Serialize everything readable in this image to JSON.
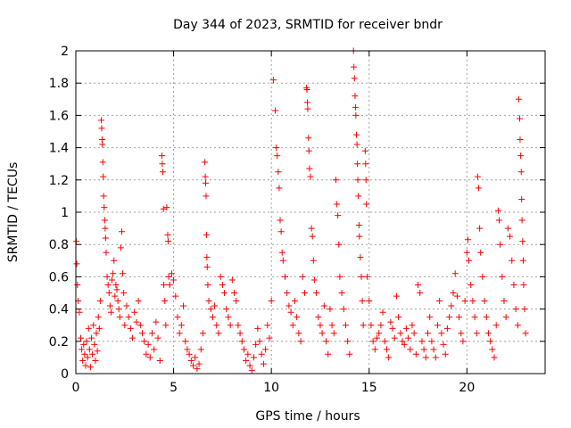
{
  "chart_data": {
    "type": "scatter",
    "title": "Day 344 of 2023, SRMTID for receiver bndr",
    "xlabel": "GPS time / hours",
    "ylabel": "SRMTID / TECUs",
    "xlim": [
      0,
      24
    ],
    "ylim": [
      0,
      2
    ],
    "xticks": [
      0,
      5,
      10,
      15,
      20
    ],
    "yticks": [
      0,
      0.2,
      0.4,
      0.6,
      0.8,
      1,
      1.2,
      1.4,
      1.6,
      1.8,
      2
    ],
    "xtick_labels": [
      "0",
      "5",
      "10",
      "15",
      "20"
    ],
    "ytick_labels": [
      "0",
      "0.2",
      "0.4",
      "0.6",
      "0.8",
      "1",
      "1.2",
      "1.4",
      "1.6",
      "1.8",
      "2"
    ],
    "grid": true,
    "marker": "+",
    "marker_color": "#ff0000",
    "series": [
      {
        "name": "SRMTID",
        "points": [
          [
            0.02,
            0.82
          ],
          [
            0.05,
            0.68
          ],
          [
            0.08,
            0.55
          ],
          [
            0.12,
            0.45
          ],
          [
            0.18,
            0.38
          ],
          [
            0.25,
            0.22
          ],
          [
            0.3,
            0.15
          ],
          [
            0.35,
            0.08
          ],
          [
            0.4,
            0.18
          ],
          [
            0.45,
            0.12
          ],
          [
            0.5,
            0.05
          ],
          [
            0.55,
            0.2
          ],
          [
            0.6,
            0.1
          ],
          [
            0.65,
            0.28
          ],
          [
            0.7,
            0.15
          ],
          [
            0.75,
            0.04
          ],
          [
            0.8,
            0.22
          ],
          [
            0.85,
            0.12
          ],
          [
            0.9,
            0.3
          ],
          [
            0.95,
            0.18
          ],
          [
            1.0,
            0.08
          ],
          [
            1.05,
            0.25
          ],
          [
            1.1,
            0.14
          ],
          [
            1.15,
            0.35
          ],
          [
            1.2,
            0.28
          ],
          [
            1.25,
            0.45
          ],
          [
            1.3,
            1.57
          ],
          [
            1.32,
            1.52
          ],
          [
            1.34,
            1.45
          ],
          [
            1.36,
            1.42
          ],
          [
            1.38,
            1.31
          ],
          [
            1.4,
            1.22
          ],
          [
            1.42,
            1.1
          ],
          [
            1.45,
            1.03
          ],
          [
            1.48,
            0.95
          ],
          [
            1.5,
            0.9
          ],
          [
            1.52,
            0.84
          ],
          [
            1.55,
            0.75
          ],
          [
            1.6,
            0.6
          ],
          [
            1.65,
            0.55
          ],
          [
            1.7,
            0.5
          ],
          [
            1.75,
            0.42
          ],
          [
            1.8,
            0.38
          ],
          [
            1.85,
            0.58
          ],
          [
            1.9,
            0.62
          ],
          [
            1.95,
            0.7
          ],
          [
            2.0,
            0.48
          ],
          [
            2.05,
            0.55
          ],
          [
            2.1,
            0.52
          ],
          [
            2.15,
            0.45
          ],
          [
            2.2,
            0.4
          ],
          [
            2.25,
            0.35
          ],
          [
            2.3,
            0.78
          ],
          [
            2.35,
            0.88
          ],
          [
            2.4,
            0.62
          ],
          [
            2.45,
            0.5
          ],
          [
            2.5,
            0.3
          ],
          [
            2.6,
            0.42
          ],
          [
            2.7,
            0.35
          ],
          [
            2.8,
            0.28
          ],
          [
            2.9,
            0.22
          ],
          [
            3.0,
            0.38
          ],
          [
            3.1,
            0.32
          ],
          [
            3.2,
            0.45
          ],
          [
            3.3,
            0.3
          ],
          [
            3.4,
            0.25
          ],
          [
            3.5,
            0.2
          ],
          [
            3.6,
            0.12
          ],
          [
            3.7,
            0.18
          ],
          [
            3.8,
            0.1
          ],
          [
            3.9,
            0.25
          ],
          [
            4.0,
            0.15
          ],
          [
            4.1,
            0.32
          ],
          [
            4.2,
            0.22
          ],
          [
            4.3,
            0.08
          ],
          [
            4.4,
            1.35
          ],
          [
            4.42,
            1.3
          ],
          [
            4.45,
            1.25
          ],
          [
            4.48,
            1.02
          ],
          [
            4.5,
            0.55
          ],
          [
            4.55,
            0.45
          ],
          [
            4.6,
            0.3
          ],
          [
            4.65,
            1.03
          ],
          [
            4.7,
            0.86
          ],
          [
            4.72,
            0.82
          ],
          [
            4.75,
            0.6
          ],
          [
            4.8,
            0.55
          ],
          [
            4.9,
            0.62
          ],
          [
            5.0,
            0.58
          ],
          [
            5.1,
            0.48
          ],
          [
            5.2,
            0.35
          ],
          [
            5.3,
            0.25
          ],
          [
            5.4,
            0.3
          ],
          [
            5.5,
            0.42
          ],
          [
            5.6,
            0.2
          ],
          [
            5.7,
            0.15
          ],
          [
            5.8,
            0.12
          ],
          [
            5.9,
            0.08
          ],
          [
            6.0,
            0.05
          ],
          [
            6.1,
            0.1
          ],
          [
            6.2,
            0.03
          ],
          [
            6.3,
            0.06
          ],
          [
            6.4,
            0.15
          ],
          [
            6.5,
            0.25
          ],
          [
            6.6,
            1.31
          ],
          [
            6.62,
            1.22
          ],
          [
            6.64,
            1.18
          ],
          [
            6.66,
            1.1
          ],
          [
            6.68,
            0.86
          ],
          [
            6.7,
            0.72
          ],
          [
            6.72,
            0.66
          ],
          [
            6.75,
            0.55
          ],
          [
            6.8,
            0.45
          ],
          [
            6.9,
            0.4
          ],
          [
            7.0,
            0.35
          ],
          [
            7.1,
            0.42
          ],
          [
            7.2,
            0.3
          ],
          [
            7.3,
            0.25
          ],
          [
            7.4,
            0.6
          ],
          [
            7.5,
            0.55
          ],
          [
            7.6,
            0.5
          ],
          [
            7.7,
            0.4
          ],
          [
            7.8,
            0.35
          ],
          [
            7.9,
            0.3
          ],
          [
            8.0,
            0.58
          ],
          [
            8.1,
            0.5
          ],
          [
            8.2,
            0.45
          ],
          [
            8.3,
            0.3
          ],
          [
            8.4,
            0.25
          ],
          [
            8.5,
            0.2
          ],
          [
            8.6,
            0.15
          ],
          [
            8.7,
            0.08
          ],
          [
            8.8,
            0.12
          ],
          [
            8.9,
            0.05
          ],
          [
            9.0,
            0.02
          ],
          [
            9.1,
            0.1
          ],
          [
            9.2,
            0.18
          ],
          [
            9.3,
            0.28
          ],
          [
            9.4,
            0.2
          ],
          [
            9.5,
            0.12
          ],
          [
            9.6,
            0.06
          ],
          [
            9.7,
            0.15
          ],
          [
            9.8,
            0.3
          ],
          [
            9.9,
            0.22
          ],
          [
            10.0,
            0.45
          ],
          [
            10.1,
            1.82
          ],
          [
            10.2,
            1.63
          ],
          [
            10.25,
            1.4
          ],
          [
            10.3,
            1.35
          ],
          [
            10.35,
            1.25
          ],
          [
            10.4,
            1.15
          ],
          [
            10.45,
            0.95
          ],
          [
            10.5,
            0.88
          ],
          [
            10.55,
            0.75
          ],
          [
            10.6,
            0.7
          ],
          [
            10.7,
            0.6
          ],
          [
            10.8,
            0.5
          ],
          [
            10.9,
            0.42
          ],
          [
            11.0,
            0.38
          ],
          [
            11.1,
            0.3
          ],
          [
            11.2,
            0.45
          ],
          [
            11.3,
            0.35
          ],
          [
            11.4,
            0.25
          ],
          [
            11.5,
            0.2
          ],
          [
            11.6,
            0.6
          ],
          [
            11.7,
            0.5
          ],
          [
            11.8,
            1.77
          ],
          [
            11.82,
            1.76
          ],
          [
            11.84,
            1.68
          ],
          [
            11.86,
            1.64
          ],
          [
            11.9,
            1.46
          ],
          [
            11.92,
            1.38
          ],
          [
            11.95,
            1.27
          ],
          [
            12.0,
            1.22
          ],
          [
            12.05,
            0.9
          ],
          [
            12.1,
            0.85
          ],
          [
            12.15,
            0.7
          ],
          [
            12.2,
            0.58
          ],
          [
            12.3,
            0.5
          ],
          [
            12.4,
            0.35
          ],
          [
            12.5,
            0.3
          ],
          [
            12.6,
            0.25
          ],
          [
            12.7,
            0.42
          ],
          [
            12.8,
            0.2
          ],
          [
            12.9,
            0.12
          ],
          [
            13.0,
            0.4
          ],
          [
            13.1,
            0.3
          ],
          [
            13.2,
            0.25
          ],
          [
            13.3,
            1.2
          ],
          [
            13.35,
            1.05
          ],
          [
            13.4,
            0.98
          ],
          [
            13.45,
            0.8
          ],
          [
            13.5,
            0.6
          ],
          [
            13.6,
            0.5
          ],
          [
            13.7,
            0.4
          ],
          [
            13.8,
            0.3
          ],
          [
            13.9,
            0.2
          ],
          [
            14.0,
            0.12
          ],
          [
            14.2,
            2.0
          ],
          [
            14.22,
            1.9
          ],
          [
            14.25,
            1.83
          ],
          [
            14.28,
            1.72
          ],
          [
            14.3,
            1.65
          ],
          [
            14.32,
            1.6
          ],
          [
            14.35,
            1.48
          ],
          [
            14.38,
            1.42
          ],
          [
            14.4,
            1.3
          ],
          [
            14.42,
            1.2
          ],
          [
            14.45,
            1.1
          ],
          [
            14.48,
            0.92
          ],
          [
            14.5,
            0.85
          ],
          [
            14.55,
            0.72
          ],
          [
            14.6,
            0.6
          ],
          [
            14.65,
            0.45
          ],
          [
            14.7,
            0.3
          ],
          [
            14.8,
            1.38
          ],
          [
            14.82,
            1.3
          ],
          [
            14.84,
            1.2
          ],
          [
            14.86,
            1.05
          ],
          [
            14.9,
            0.6
          ],
          [
            15.0,
            0.45
          ],
          [
            15.1,
            0.3
          ],
          [
            15.2,
            0.2
          ],
          [
            15.3,
            0.15
          ],
          [
            15.4,
            0.22
          ],
          [
            15.5,
            0.25
          ],
          [
            15.6,
            0.3
          ],
          [
            15.7,
            0.38
          ],
          [
            15.8,
            0.2
          ],
          [
            15.9,
            0.15
          ],
          [
            16.0,
            0.1
          ],
          [
            16.1,
            0.32
          ],
          [
            16.2,
            0.28
          ],
          [
            16.3,
            0.22
          ],
          [
            16.4,
            0.48
          ],
          [
            16.5,
            0.35
          ],
          [
            16.6,
            0.25
          ],
          [
            16.7,
            0.2
          ],
          [
            16.8,
            0.18
          ],
          [
            16.9,
            0.28
          ],
          [
            17.0,
            0.22
          ],
          [
            17.1,
            0.15
          ],
          [
            17.2,
            0.3
          ],
          [
            17.3,
            0.25
          ],
          [
            17.4,
            0.12
          ],
          [
            17.5,
            0.55
          ],
          [
            17.6,
            0.5
          ],
          [
            17.7,
            0.2
          ],
          [
            17.8,
            0.15
          ],
          [
            17.9,
            0.1
          ],
          [
            18.0,
            0.25
          ],
          [
            18.1,
            0.35
          ],
          [
            18.2,
            0.2
          ],
          [
            18.3,
            0.15
          ],
          [
            18.4,
            0.1
          ],
          [
            18.5,
            0.3
          ],
          [
            18.6,
            0.45
          ],
          [
            18.7,
            0.25
          ],
          [
            18.8,
            0.18
          ],
          [
            18.9,
            0.12
          ],
          [
            19.0,
            0.28
          ],
          [
            19.1,
            0.35
          ],
          [
            19.2,
            0.42
          ],
          [
            19.3,
            0.5
          ],
          [
            19.4,
            0.62
          ],
          [
            19.5,
            0.48
          ],
          [
            19.6,
            0.35
          ],
          [
            19.7,
            0.25
          ],
          [
            19.8,
            0.2
          ],
          [
            19.9,
            0.45
          ],
          [
            20.0,
            0.75
          ],
          [
            20.05,
            0.83
          ],
          [
            20.1,
            0.7
          ],
          [
            20.2,
            0.55
          ],
          [
            20.3,
            0.45
          ],
          [
            20.4,
            0.35
          ],
          [
            20.5,
            0.25
          ],
          [
            20.55,
            1.22
          ],
          [
            20.6,
            1.15
          ],
          [
            20.65,
            0.9
          ],
          [
            20.7,
            0.75
          ],
          [
            20.8,
            0.6
          ],
          [
            20.9,
            0.45
          ],
          [
            21.0,
            0.35
          ],
          [
            21.1,
            0.25
          ],
          [
            21.2,
            0.2
          ],
          [
            21.3,
            0.15
          ],
          [
            21.4,
            0.1
          ],
          [
            21.5,
            0.3
          ],
          [
            21.6,
            1.01
          ],
          [
            21.65,
            0.95
          ],
          [
            21.7,
            0.8
          ],
          [
            21.8,
            0.6
          ],
          [
            21.9,
            0.45
          ],
          [
            22.0,
            0.35
          ],
          [
            22.1,
            0.9
          ],
          [
            22.2,
            0.85
          ],
          [
            22.3,
            0.7
          ],
          [
            22.4,
            0.55
          ],
          [
            22.5,
            0.4
          ],
          [
            22.6,
            0.3
          ],
          [
            22.65,
            1.7
          ],
          [
            22.7,
            1.58
          ],
          [
            22.72,
            1.45
          ],
          [
            22.75,
            1.35
          ],
          [
            22.78,
            1.25
          ],
          [
            22.8,
            1.08
          ],
          [
            22.82,
            0.95
          ],
          [
            22.85,
            0.82
          ],
          [
            22.88,
            0.7
          ],
          [
            22.9,
            0.55
          ],
          [
            22.95,
            0.4
          ],
          [
            23.0,
            0.25
          ]
        ]
      }
    ]
  }
}
